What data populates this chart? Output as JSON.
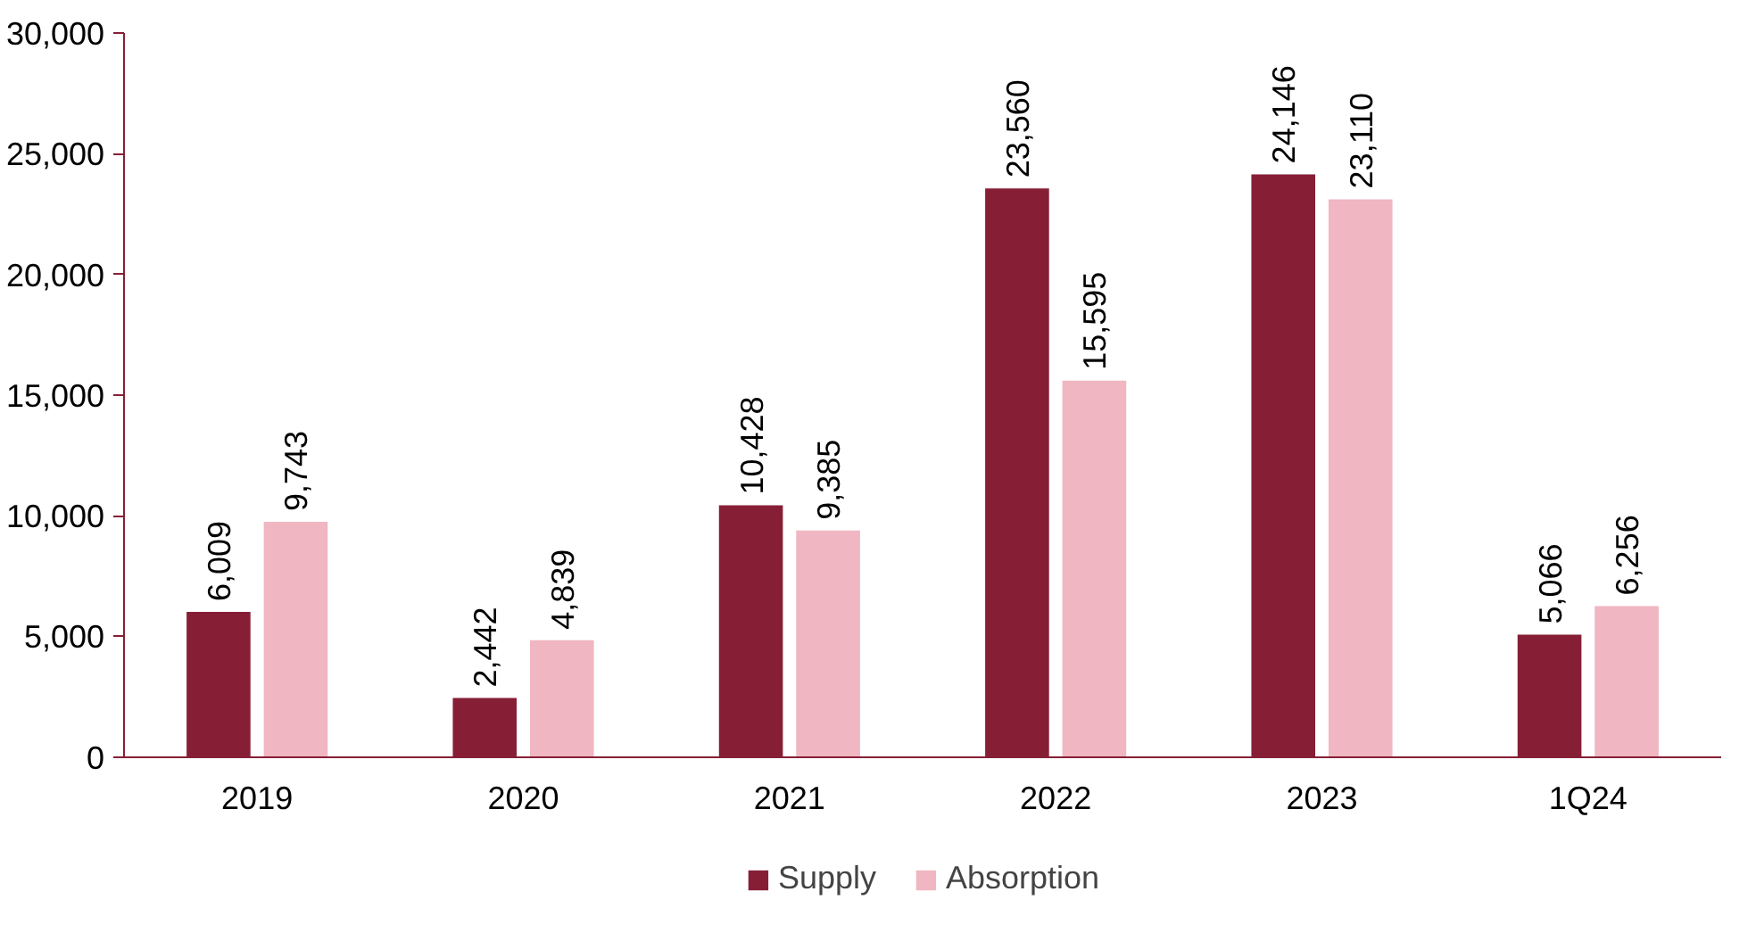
{
  "chart_data": {
    "type": "bar",
    "categories": [
      "2019",
      "2020",
      "2021",
      "2022",
      "2023",
      "1Q24"
    ],
    "series": [
      {
        "name": "Supply",
        "color": "#861f36",
        "values": [
          6009,
          2442,
          10428,
          23560,
          24146,
          5066
        ],
        "value_labels": [
          "6,009",
          "2,442",
          "10,428",
          "23,560",
          "24,146",
          "5,066"
        ]
      },
      {
        "name": "Absorption",
        "color": "#f0b6c1",
        "values": [
          9743,
          4839,
          9385,
          15595,
          23110,
          6256
        ],
        "value_labels": [
          "9,743",
          "4,839",
          "9,385",
          "15,595",
          "23,110",
          "6,256"
        ]
      }
    ],
    "ylim": [
      0,
      30000
    ],
    "yticks": [
      {
        "value": 0,
        "label": "0"
      },
      {
        "value": 5000,
        "label": "5,000"
      },
      {
        "value": 10000,
        "label": "10,000"
      },
      {
        "value": 15000,
        "label": "15,000"
      },
      {
        "value": 20000,
        "label": "20,000"
      },
      {
        "value": 25000,
        "label": "25,000"
      },
      {
        "value": 30000,
        "label": "30,000"
      }
    ],
    "data_labels": true,
    "grid": false,
    "legend": "bottom"
  }
}
